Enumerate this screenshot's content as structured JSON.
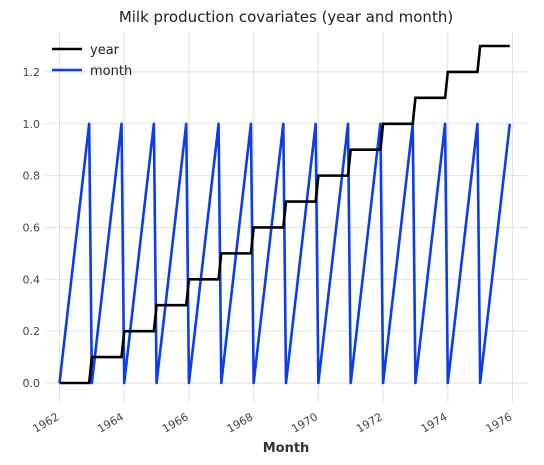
{
  "chart_data": {
    "type": "line",
    "title": "Milk production covariates (year and month)",
    "xlabel": "Month",
    "ylabel": "",
    "x_range": [
      1962,
      1976
    ],
    "ylim": [
      0.0,
      1.3
    ],
    "x_ticks": [
      "1962",
      "1964",
      "1966",
      "1968",
      "1970",
      "1972",
      "1974",
      "1976"
    ],
    "y_ticks": [
      "0.0",
      "0.2",
      "0.4",
      "0.6",
      "0.8",
      "1.0",
      "1.2"
    ],
    "grid": true,
    "legend_position": "top-left",
    "series": [
      {
        "name": "year",
        "color": "#000000",
        "description": "step function: value (year - 1962)/10 held constant within each year",
        "values_by_year": [
          {
            "year": 1962,
            "value": 0.0
          },
          {
            "year": 1963,
            "value": 0.1
          },
          {
            "year": 1964,
            "value": 0.2
          },
          {
            "year": 1965,
            "value": 0.3
          },
          {
            "year": 1966,
            "value": 0.4
          },
          {
            "year": 1967,
            "value": 0.5
          },
          {
            "year": 1968,
            "value": 0.6
          },
          {
            "year": 1969,
            "value": 0.7
          },
          {
            "year": 1970,
            "value": 0.8
          },
          {
            "year": 1971,
            "value": 0.9
          },
          {
            "year": 1972,
            "value": 1.0
          },
          {
            "year": 1973,
            "value": 1.1
          },
          {
            "year": 1974,
            "value": 1.2
          },
          {
            "year": 1975,
            "value": 1.3
          }
        ]
      },
      {
        "name": "month",
        "color": "#0b3de8",
        "description": "sawtooth: rises linearly from 0.0 (January) to 1.0 (December) each year",
        "monthly_values": [
          0.0,
          0.0909,
          0.1818,
          0.2727,
          0.3636,
          0.4545,
          0.5455,
          0.6364,
          0.7273,
          0.8182,
          0.9091,
          1.0
        ],
        "years": [
          1962,
          1963,
          1964,
          1965,
          1966,
          1967,
          1968,
          1969,
          1970,
          1971,
          1972,
          1973,
          1974,
          1975
        ]
      }
    ]
  }
}
